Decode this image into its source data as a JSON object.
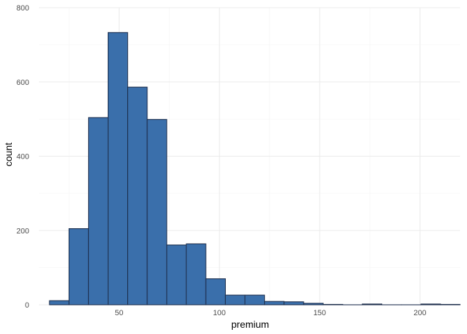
{
  "chart_data": {
    "type": "bar",
    "subtype": "histogram",
    "title": "",
    "xlabel": "premium",
    "ylabel": "count",
    "xlim": [
      10,
      220
    ],
    "ylim": [
      0,
      800
    ],
    "x_ticks": [
      50,
      100,
      150,
      200
    ],
    "x_tick_labels": [
      "50",
      "100",
      "150",
      "200"
    ],
    "y_ticks": [
      0,
      200,
      400,
      600,
      800
    ],
    "y_tick_labels": [
      "0",
      "200",
      "400",
      "600",
      "800"
    ],
    "grid": true,
    "bin_width": 9.75,
    "bins": [
      {
        "x0": 15.25,
        "x1": 25.0,
        "count": 11
      },
      {
        "x0": 25.0,
        "x1": 34.75,
        "count": 205
      },
      {
        "x0": 34.75,
        "x1": 44.5,
        "count": 504
      },
      {
        "x0": 44.5,
        "x1": 54.25,
        "count": 733
      },
      {
        "x0": 54.25,
        "x1": 64.0,
        "count": 586
      },
      {
        "x0": 64.0,
        "x1": 73.75,
        "count": 499
      },
      {
        "x0": 73.75,
        "x1": 83.5,
        "count": 161
      },
      {
        "x0": 83.5,
        "x1": 93.25,
        "count": 164
      },
      {
        "x0": 93.25,
        "x1": 103.0,
        "count": 70
      },
      {
        "x0": 103.0,
        "x1": 112.75,
        "count": 26
      },
      {
        "x0": 112.75,
        "x1": 122.5,
        "count": 26
      },
      {
        "x0": 122.5,
        "x1": 132.25,
        "count": 9
      },
      {
        "x0": 132.25,
        "x1": 142.0,
        "count": 8
      },
      {
        "x0": 142.0,
        "x1": 151.75,
        "count": 4
      },
      {
        "x0": 151.75,
        "x1": 161.5,
        "count": 1
      },
      {
        "x0": 161.5,
        "x1": 171.25,
        "count": 0
      },
      {
        "x0": 171.25,
        "x1": 181.0,
        "count": 2
      },
      {
        "x0": 181.0,
        "x1": 190.75,
        "count": 0
      },
      {
        "x0": 190.75,
        "x1": 200.5,
        "count": 0
      },
      {
        "x0": 200.5,
        "x1": 210.25,
        "count": 2
      },
      {
        "x0": 210.25,
        "x1": 220.0,
        "count": 1
      }
    ],
    "colors": {
      "bar_fill": "#3a6fab",
      "bar_stroke": "#1e2f4d",
      "background": "#ffffff"
    }
  }
}
